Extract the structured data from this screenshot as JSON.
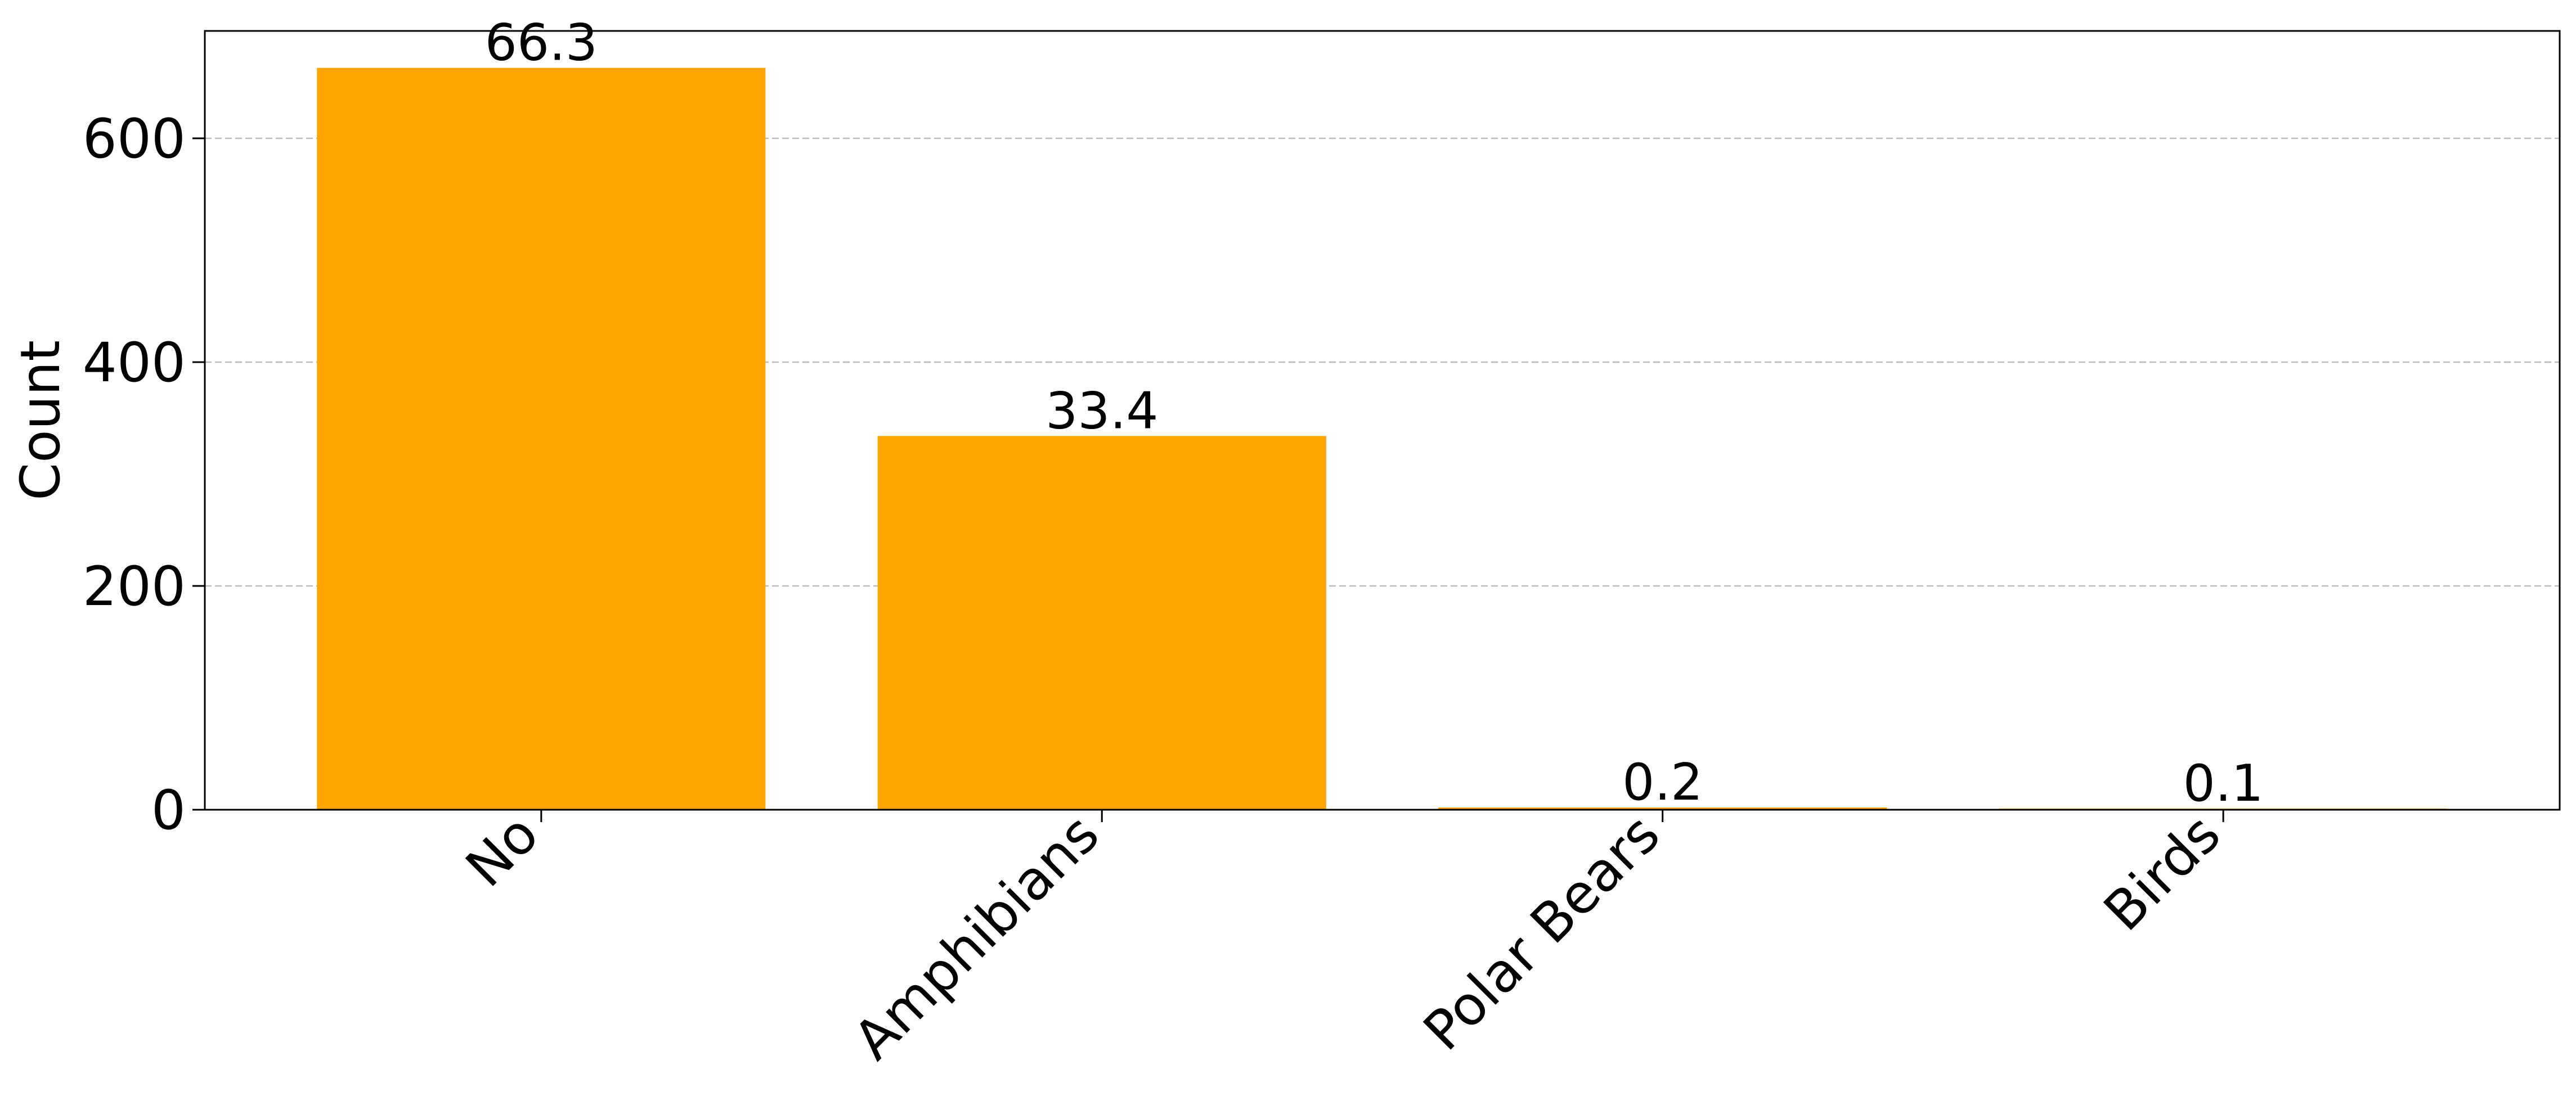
{
  "chart_data": {
    "type": "bar",
    "title": "",
    "xlabel": "",
    "ylabel": "Count",
    "categories": [
      "No",
      "Amphibians",
      "Polar Bears",
      "Birds"
    ],
    "values": [
      663,
      334,
      2,
      1
    ],
    "data_labels": [
      "66.3",
      "33.4",
      "0.2",
      "0.1"
    ],
    "ylim": [
      0,
      696
    ],
    "yticks": [
      0,
      200,
      400,
      600
    ],
    "ytick_labels": [
      "0",
      "200",
      "400",
      "600"
    ],
    "grid": "horizontal-dashed",
    "legend": "none",
    "bar_color": "#FFA500",
    "grid_color": "#BBBBBB"
  }
}
